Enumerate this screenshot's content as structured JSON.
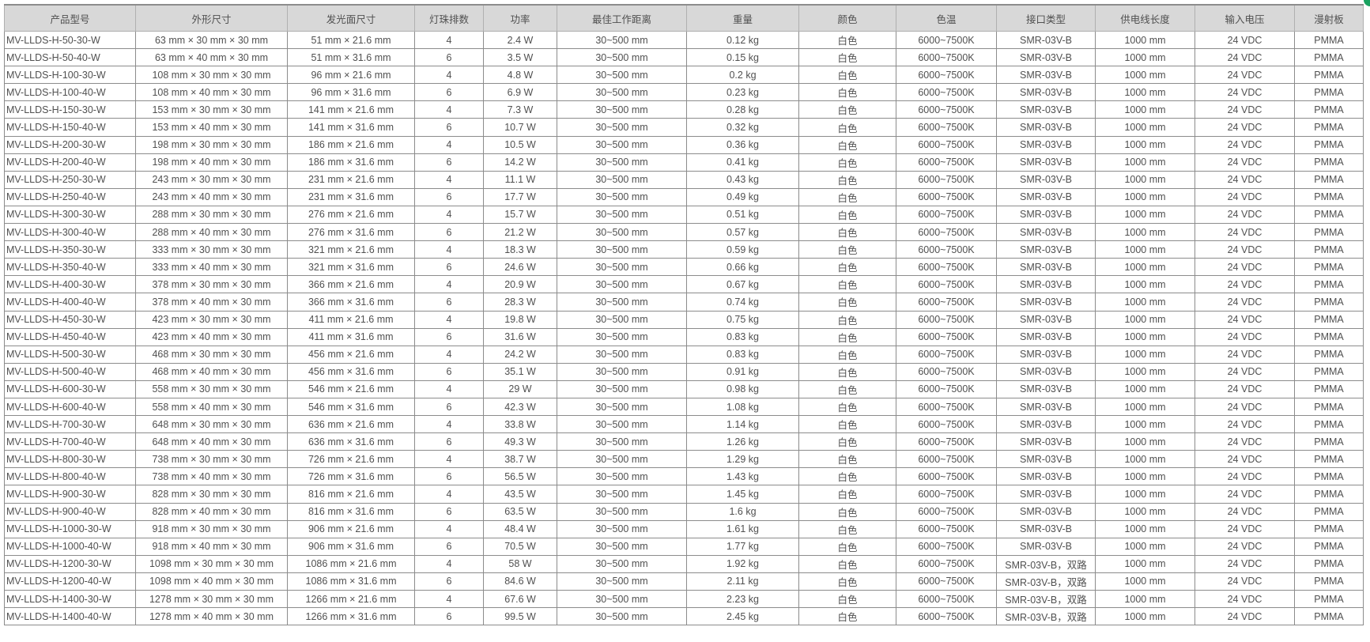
{
  "table": {
    "headers": [
      "产品型号",
      "外形尺寸",
      "发光面尺寸",
      "灯珠排数",
      "功率",
      "最佳工作距离",
      "重量",
      "颜色",
      "色温",
      "接口类型",
      "供电线长度",
      "输入电压",
      "漫射板"
    ],
    "rows": [
      [
        "MV-LLDS-H-50-30-W",
        "63 mm × 30 mm × 30 mm",
        "51 mm × 21.6 mm",
        "4",
        "2.4 W",
        "30~500 mm",
        "0.12 kg",
        "白色",
        "6000~7500K",
        "SMR-03V-B",
        "1000 mm",
        "24 VDC",
        "PMMA"
      ],
      [
        "MV-LLDS-H-50-40-W",
        "63 mm × 40 mm × 30 mm",
        "51 mm × 31.6 mm",
        "6",
        "3.5 W",
        "30~500 mm",
        "0.15 kg",
        "白色",
        "6000~7500K",
        "SMR-03V-B",
        "1000 mm",
        "24 VDC",
        "PMMA"
      ],
      [
        "MV-LLDS-H-100-30-W",
        "108 mm × 30 mm × 30 mm",
        "96 mm × 21.6 mm",
        "4",
        "4.8 W",
        "30~500 mm",
        "0.2 kg",
        "白色",
        "6000~7500K",
        "SMR-03V-B",
        "1000 mm",
        "24 VDC",
        "PMMA"
      ],
      [
        "MV-LLDS-H-100-40-W",
        "108 mm × 40 mm × 30 mm",
        "96 mm × 31.6 mm",
        "6",
        "6.9 W",
        "30~500 mm",
        "0.23 kg",
        "白色",
        "6000~7500K",
        "SMR-03V-B",
        "1000 mm",
        "24 VDC",
        "PMMA"
      ],
      [
        "MV-LLDS-H-150-30-W",
        "153 mm × 30 mm × 30 mm",
        "141 mm × 21.6 mm",
        "4",
        "7.3 W",
        "30~500 mm",
        "0.28 kg",
        "白色",
        "6000~7500K",
        "SMR-03V-B",
        "1000 mm",
        "24 VDC",
        "PMMA"
      ],
      [
        "MV-LLDS-H-150-40-W",
        "153 mm × 40 mm × 30 mm",
        "141 mm × 31.6 mm",
        "6",
        "10.7 W",
        "30~500 mm",
        "0.32 kg",
        "白色",
        "6000~7500K",
        "SMR-03V-B",
        "1000 mm",
        "24 VDC",
        "PMMA"
      ],
      [
        "MV-LLDS-H-200-30-W",
        "198 mm × 30 mm × 30 mm",
        "186 mm × 21.6 mm",
        "4",
        "10.5 W",
        "30~500 mm",
        "0.36 kg",
        "白色",
        "6000~7500K",
        "SMR-03V-B",
        "1000 mm",
        "24 VDC",
        "PMMA"
      ],
      [
        "MV-LLDS-H-200-40-W",
        "198 mm × 40 mm × 30 mm",
        "186 mm × 31.6 mm",
        "6",
        "14.2 W",
        "30~500 mm",
        "0.41 kg",
        "白色",
        "6000~7500K",
        "SMR-03V-B",
        "1000 mm",
        "24 VDC",
        "PMMA"
      ],
      [
        "MV-LLDS-H-250-30-W",
        "243 mm × 30 mm × 30 mm",
        "231 mm × 21.6 mm",
        "4",
        "11.1 W",
        "30~500 mm",
        "0.43 kg",
        "白色",
        "6000~7500K",
        "SMR-03V-B",
        "1000 mm",
        "24 VDC",
        "PMMA"
      ],
      [
        "MV-LLDS-H-250-40-W",
        "243 mm × 40 mm × 30 mm",
        "231 mm × 31.6 mm",
        "6",
        "17.7 W",
        "30~500 mm",
        "0.49 kg",
        "白色",
        "6000~7500K",
        "SMR-03V-B",
        "1000 mm",
        "24 VDC",
        "PMMA"
      ],
      [
        "MV-LLDS-H-300-30-W",
        "288 mm × 30 mm × 30 mm",
        "276 mm × 21.6 mm",
        "4",
        "15.7 W",
        "30~500 mm",
        "0.51 kg",
        "白色",
        "6000~7500K",
        "SMR-03V-B",
        "1000 mm",
        "24 VDC",
        "PMMA"
      ],
      [
        "MV-LLDS-H-300-40-W",
        "288 mm × 40 mm × 30 mm",
        "276 mm × 31.6 mm",
        "6",
        "21.2 W",
        "30~500 mm",
        "0.57 kg",
        "白色",
        "6000~7500K",
        "SMR-03V-B",
        "1000 mm",
        "24 VDC",
        "PMMA"
      ],
      [
        "MV-LLDS-H-350-30-W",
        "333 mm × 30 mm × 30 mm",
        "321 mm × 21.6 mm",
        "4",
        "18.3 W",
        "30~500 mm",
        "0.59 kg",
        "白色",
        "6000~7500K",
        "SMR-03V-B",
        "1000 mm",
        "24 VDC",
        "PMMA"
      ],
      [
        "MV-LLDS-H-350-40-W",
        "333 mm × 40 mm × 30 mm",
        "321 mm × 31.6 mm",
        "6",
        "24.6 W",
        "30~500 mm",
        "0.66 kg",
        "白色",
        "6000~7500K",
        "SMR-03V-B",
        "1000 mm",
        "24 VDC",
        "PMMA"
      ],
      [
        "MV-LLDS-H-400-30-W",
        "378 mm × 30 mm × 30 mm",
        "366 mm × 21.6 mm",
        "4",
        "20.9 W",
        "30~500 mm",
        "0.67 kg",
        "白色",
        "6000~7500K",
        "SMR-03V-B",
        "1000 mm",
        "24 VDC",
        "PMMA"
      ],
      [
        "MV-LLDS-H-400-40-W",
        "378 mm × 40 mm × 30 mm",
        "366 mm × 31.6 mm",
        "6",
        "28.3 W",
        "30~500 mm",
        "0.74 kg",
        "白色",
        "6000~7500K",
        "SMR-03V-B",
        "1000 mm",
        "24 VDC",
        "PMMA"
      ],
      [
        "MV-LLDS-H-450-30-W",
        "423 mm × 30 mm × 30 mm",
        "411 mm × 21.6 mm",
        "4",
        "19.8 W",
        "30~500 mm",
        "0.75 kg",
        "白色",
        "6000~7500K",
        "SMR-03V-B",
        "1000 mm",
        "24 VDC",
        "PMMA"
      ],
      [
        "MV-LLDS-H-450-40-W",
        "423 mm × 40 mm × 30 mm",
        "411 mm × 31.6 mm",
        "6",
        "31.6 W",
        "30~500 mm",
        "0.83 kg",
        "白色",
        "6000~7500K",
        "SMR-03V-B",
        "1000 mm",
        "24 VDC",
        "PMMA"
      ],
      [
        "MV-LLDS-H-500-30-W",
        "468 mm × 30 mm × 30 mm",
        "456 mm × 21.6 mm",
        "4",
        "24.2 W",
        "30~500 mm",
        "0.83 kg",
        "白色",
        "6000~7500K",
        "SMR-03V-B",
        "1000 mm",
        "24 VDC",
        "PMMA"
      ],
      [
        "MV-LLDS-H-500-40-W",
        "468 mm × 40 mm × 30 mm",
        "456 mm × 31.6 mm",
        "6",
        "35.1 W",
        "30~500 mm",
        "0.91 kg",
        "白色",
        "6000~7500K",
        "SMR-03V-B",
        "1000 mm",
        "24 VDC",
        "PMMA"
      ],
      [
        "MV-LLDS-H-600-30-W",
        "558 mm × 30 mm × 30 mm",
        "546 mm × 21.6 mm",
        "4",
        "29 W",
        "30~500 mm",
        "0.98 kg",
        "白色",
        "6000~7500K",
        "SMR-03V-B",
        "1000 mm",
        "24 VDC",
        "PMMA"
      ],
      [
        "MV-LLDS-H-600-40-W",
        "558 mm × 40 mm × 30 mm",
        "546 mm × 31.6 mm",
        "6",
        "42.3 W",
        "30~500 mm",
        "1.08 kg",
        "白色",
        "6000~7500K",
        "SMR-03V-B",
        "1000 mm",
        "24 VDC",
        "PMMA"
      ],
      [
        "MV-LLDS-H-700-30-W",
        "648 mm × 30 mm × 30 mm",
        "636 mm × 21.6 mm",
        "4",
        "33.8 W",
        "30~500 mm",
        "1.14 kg",
        "白色",
        "6000~7500K",
        "SMR-03V-B",
        "1000 mm",
        "24 VDC",
        "PMMA"
      ],
      [
        "MV-LLDS-H-700-40-W",
        "648 mm × 40 mm × 30 mm",
        "636 mm × 31.6 mm",
        "6",
        "49.3 W",
        "30~500 mm",
        "1.26 kg",
        "白色",
        "6000~7500K",
        "SMR-03V-B",
        "1000 mm",
        "24 VDC",
        "PMMA"
      ],
      [
        "MV-LLDS-H-800-30-W",
        "738 mm × 30 mm × 30 mm",
        "726 mm × 21.6 mm",
        "4",
        "38.7 W",
        "30~500 mm",
        "1.29 kg",
        "白色",
        "6000~7500K",
        "SMR-03V-B",
        "1000 mm",
        "24 VDC",
        "PMMA"
      ],
      [
        "MV-LLDS-H-800-40-W",
        "738 mm × 40 mm × 30 mm",
        "726 mm × 31.6 mm",
        "6",
        "56.5 W",
        "30~500 mm",
        "1.43 kg",
        "白色",
        "6000~7500K",
        "SMR-03V-B",
        "1000 mm",
        "24 VDC",
        "PMMA"
      ],
      [
        "MV-LLDS-H-900-30-W",
        "828 mm × 30 mm × 30 mm",
        "816 mm × 21.6 mm",
        "4",
        "43.5 W",
        "30~500 mm",
        "1.45 kg",
        "白色",
        "6000~7500K",
        "SMR-03V-B",
        "1000 mm",
        "24 VDC",
        "PMMA"
      ],
      [
        "MV-LLDS-H-900-40-W",
        "828 mm × 40 mm × 30 mm",
        "816 mm × 31.6 mm",
        "6",
        "63.5 W",
        "30~500 mm",
        "1.6 kg",
        "白色",
        "6000~7500K",
        "SMR-03V-B",
        "1000 mm",
        "24 VDC",
        "PMMA"
      ],
      [
        "MV-LLDS-H-1000-30-W",
        "918 mm × 30 mm × 30 mm",
        "906 mm × 21.6 mm",
        "4",
        "48.4 W",
        "30~500 mm",
        "1.61 kg",
        "白色",
        "6000~7500K",
        "SMR-03V-B",
        "1000 mm",
        "24 VDC",
        "PMMA"
      ],
      [
        "MV-LLDS-H-1000-40-W",
        "918 mm × 40 mm × 30 mm",
        "906 mm × 31.6 mm",
        "6",
        "70.5 W",
        "30~500 mm",
        "1.77 kg",
        "白色",
        "6000~7500K",
        "SMR-03V-B",
        "1000 mm",
        "24 VDC",
        "PMMA"
      ],
      [
        "MV-LLDS-H-1200-30-W",
        "1098 mm × 30 mm × 30 mm",
        "1086 mm × 21.6 mm",
        "4",
        "58 W",
        "30~500 mm",
        "1.92 kg",
        "白色",
        "6000~7500K",
        "SMR-03V-B，双路",
        "1000 mm",
        "24 VDC",
        "PMMA"
      ],
      [
        "MV-LLDS-H-1200-40-W",
        "1098 mm × 40 mm × 30 mm",
        "1086 mm × 31.6 mm",
        "6",
        "84.6 W",
        "30~500 mm",
        "2.11 kg",
        "白色",
        "6000~7500K",
        "SMR-03V-B，双路",
        "1000 mm",
        "24 VDC",
        "PMMA"
      ],
      [
        "MV-LLDS-H-1400-30-W",
        "1278 mm × 30 mm × 30 mm",
        "1266 mm × 21.6 mm",
        "4",
        "67.6 W",
        "30~500 mm",
        "2.23 kg",
        "白色",
        "6000~7500K",
        "SMR-03V-B，双路",
        "1000 mm",
        "24 VDC",
        "PMMA"
      ],
      [
        "MV-LLDS-H-1400-40-W",
        "1278 mm × 40 mm × 30 mm",
        "1266 mm × 31.6 mm",
        "6",
        "99.5 W",
        "30~500 mm",
        "2.45 kg",
        "白色",
        "6000~7500K",
        "SMR-03V-B，双路",
        "1000 mm",
        "24 VDC",
        "PMMA"
      ]
    ]
  },
  "colors": {
    "header_bg": "#d8d8d8",
    "text": "#505050",
    "border": "#8c8c8c",
    "corner_badge": "#1aa260"
  }
}
